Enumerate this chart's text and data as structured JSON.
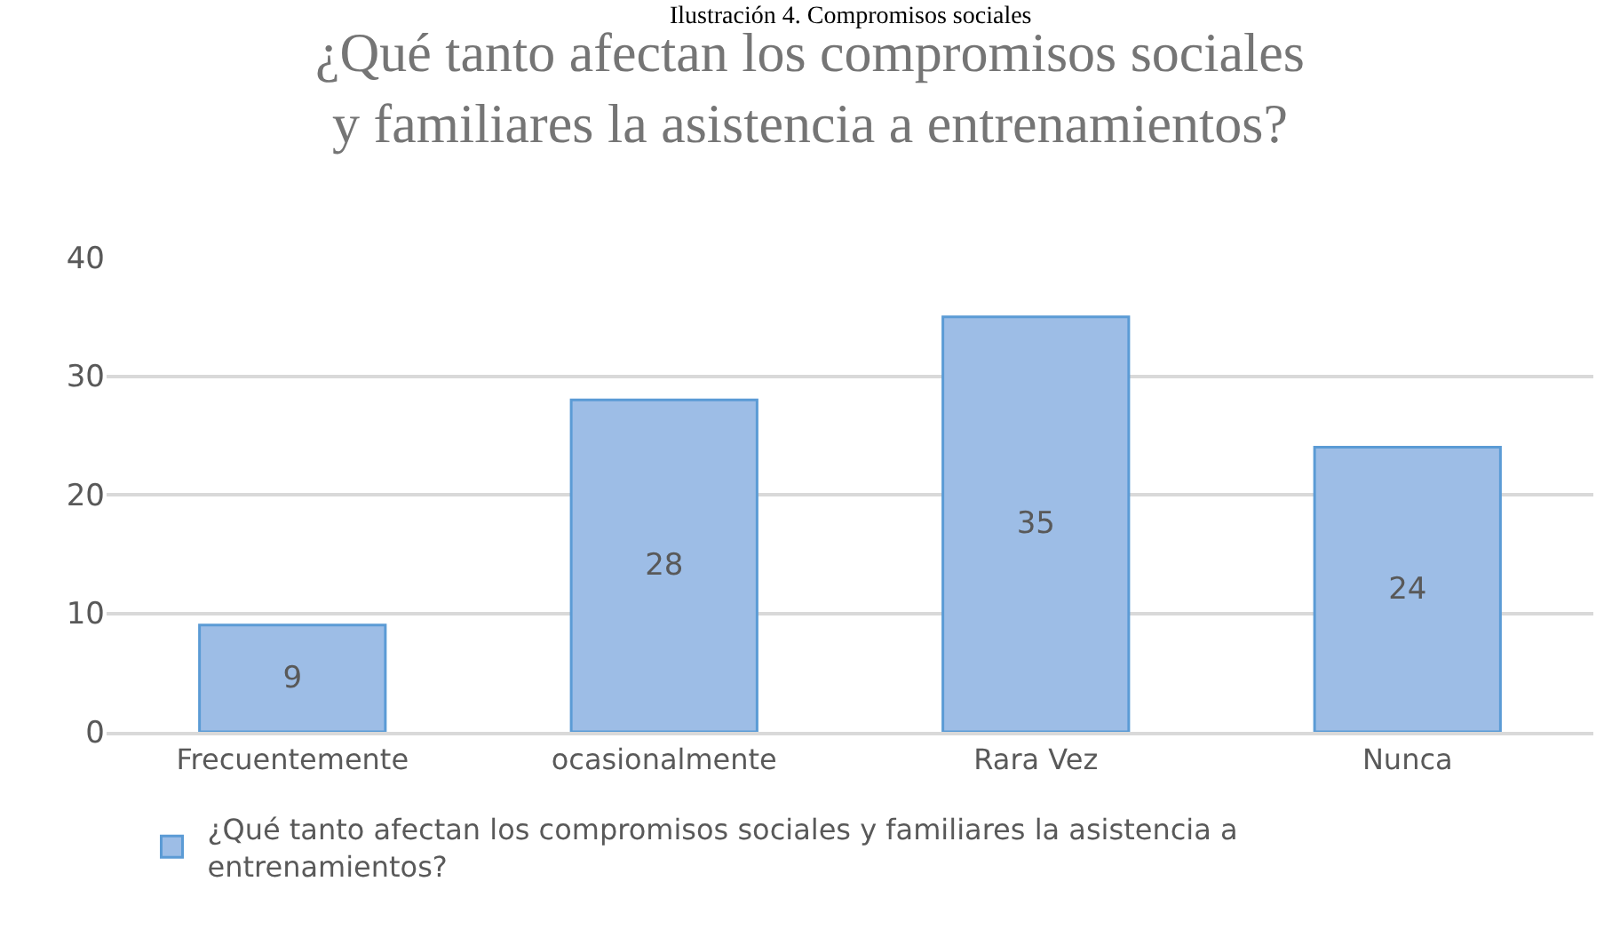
{
  "chart_data": {
    "type": "bar",
    "title": "¿Qué tanto afectan los compromisos sociales\ny familiares la asistencia a entrenamientos?",
    "annotations": [
      "Ilustración 4. Compromisos sociales"
    ],
    "categories": [
      "Frecuentemente",
      "ocasionalmente",
      "Rara Vez",
      "Nunca"
    ],
    "series": [
      {
        "name": "¿Qué tanto afectan los compromisos sociales y familiares la asistencia a entrenamientos?",
        "color": "#9dbde6",
        "values": [
          9,
          28,
          35,
          24
        ]
      }
    ],
    "data_labels": true,
    "ylim": [
      0,
      40
    ],
    "yticks": [
      0,
      10,
      20,
      30,
      40
    ],
    "grid": "y",
    "legend": "bottom"
  }
}
